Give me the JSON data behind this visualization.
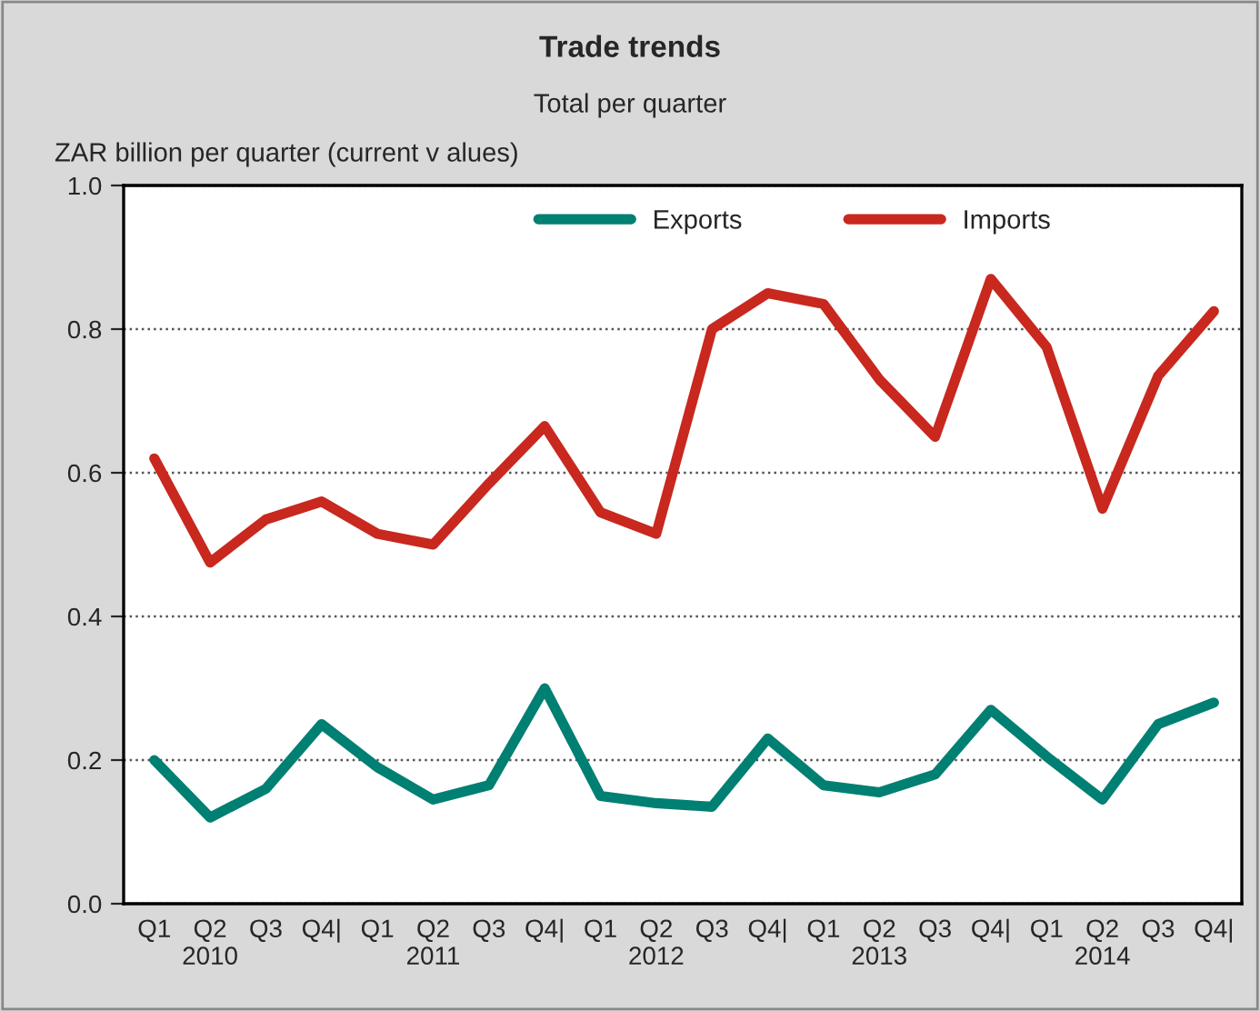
{
  "chart_data": {
    "type": "line",
    "title": "Trade trends",
    "subtitle": "Total per quarter",
    "ylabel": "ZAR billion per quarter (current v alues)",
    "categories": [
      "Q1",
      "Q2\n2010",
      "Q3",
      "Q4|",
      "Q1",
      "Q2\n2011",
      "Q3",
      "Q4|",
      "Q1",
      "Q2\n2012",
      "Q3",
      "Q4|",
      "Q1",
      "Q2\n2013",
      "Q3",
      "Q4|",
      "Q1",
      "Q2\n2014",
      "Q3",
      "Q4|"
    ],
    "series": [
      {
        "name": "Exports",
        "color": "#007f73",
        "values": [
          0.2,
          0.12,
          0.16,
          0.25,
          0.19,
          0.145,
          0.165,
          0.3,
          0.15,
          0.14,
          0.135,
          0.23,
          0.165,
          0.155,
          0.18,
          0.27,
          0.205,
          0.145,
          0.25,
          0.28
        ]
      },
      {
        "name": "Imports",
        "color": "#c8281e",
        "values": [
          0.62,
          0.475,
          0.535,
          0.56,
          0.515,
          0.5,
          0.585,
          0.665,
          0.545,
          0.515,
          0.8,
          0.85,
          0.835,
          0.73,
          0.65,
          0.87,
          0.775,
          0.55,
          0.735,
          0.825
        ]
      }
    ],
    "ylim": [
      0,
      1
    ],
    "yticks": [
      {
        "value": 0,
        "label": "0.0"
      },
      {
        "value": 0.2,
        "label": "0.2"
      },
      {
        "value": 0.4,
        "label": "0.4"
      },
      {
        "value": 0.6,
        "label": "0.6"
      },
      {
        "value": 0.8,
        "label": "0.8"
      },
      {
        "value": 1,
        "label": "1.0"
      }
    ],
    "grid": "y",
    "legend": "top",
    "marker": "none",
    "line_style": "solid"
  }
}
